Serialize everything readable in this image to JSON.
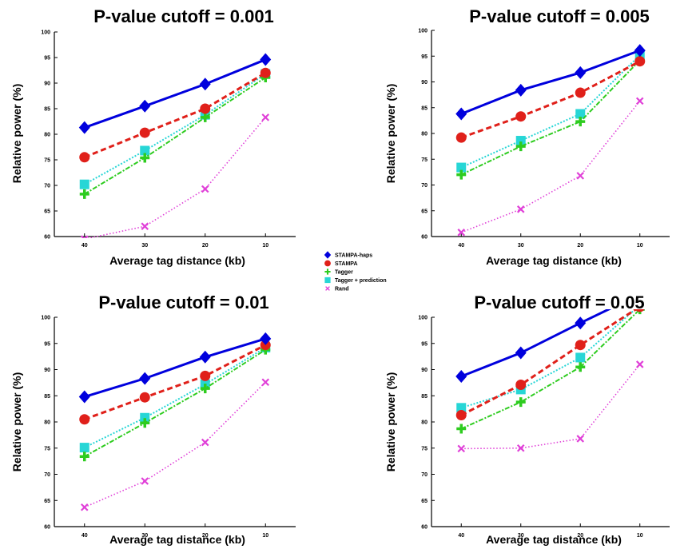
{
  "chart_data": [
    {
      "type": "line",
      "title": "P-value cutoff = 0.001",
      "xlabel": "Average tag distance (kb)",
      "ylabel": "Relative power (%)",
      "x_categories": [
        "40",
        "30",
        "20",
        "10"
      ],
      "ylim": [
        60,
        100
      ],
      "yticks": [
        60,
        65,
        70,
        75,
        80,
        85,
        90,
        95,
        100
      ],
      "series": [
        {
          "name": "STAMPA-haps",
          "values": [
            81.3,
            85.5,
            89.8,
            94.6
          ]
        },
        {
          "name": "STAMPA",
          "values": [
            75.5,
            80.3,
            85.0,
            92.0
          ]
        },
        {
          "name": "Tagger",
          "values": [
            68.3,
            75.4,
            83.3,
            91.1
          ]
        },
        {
          "name": "Tagger + prediction",
          "values": [
            70.2,
            76.8,
            83.8,
            91.8
          ]
        },
        {
          "name": "Rand",
          "values": [
            59.5,
            62.0,
            69.3,
            83.3
          ]
        }
      ]
    },
    {
      "type": "line",
      "title": "P-value cutoff = 0.005",
      "xlabel": "Average tag distance (kb)",
      "ylabel": "Relative power (%)",
      "x_categories": [
        "40",
        "30",
        "20",
        "10"
      ],
      "ylim": [
        60,
        100
      ],
      "yticks": [
        60,
        65,
        70,
        75,
        80,
        85,
        90,
        95,
        100
      ],
      "series": [
        {
          "name": "STAMPA-haps",
          "values": [
            83.8,
            88.4,
            91.8,
            96.1
          ]
        },
        {
          "name": "STAMPA",
          "values": [
            79.2,
            83.3,
            87.9,
            94.0
          ]
        },
        {
          "name": "Tagger",
          "values": [
            72.0,
            77.5,
            82.3,
            94.2
          ]
        },
        {
          "name": "Tagger + prediction",
          "values": [
            73.4,
            78.6,
            83.8,
            95.2
          ]
        },
        {
          "name": "Rand",
          "values": [
            60.8,
            65.3,
            71.8,
            86.3
          ]
        }
      ]
    },
    {
      "type": "line",
      "title": "P-value cutoff = 0.01",
      "xlabel": "Average tag distance (kb)",
      "ylabel": "Relative power (%)",
      "x_categories": [
        "40",
        "30",
        "20",
        "10"
      ],
      "ylim": [
        60,
        100
      ],
      "yticks": [
        60,
        65,
        70,
        75,
        80,
        85,
        90,
        95,
        100
      ],
      "series": [
        {
          "name": "STAMPA-haps",
          "values": [
            84.8,
            88.3,
            92.4,
            95.9
          ]
        },
        {
          "name": "STAMPA",
          "values": [
            80.5,
            84.7,
            88.8,
            94.7
          ]
        },
        {
          "name": "Tagger",
          "values": [
            73.4,
            79.8,
            86.4,
            93.8
          ]
        },
        {
          "name": "Tagger + prediction",
          "values": [
            75.1,
            80.8,
            87.2,
            94.2
          ]
        },
        {
          "name": "Rand",
          "values": [
            63.7,
            68.7,
            76.1,
            87.6
          ]
        }
      ]
    },
    {
      "type": "line",
      "title": "P-value cutoff = 0.05",
      "xlabel": "Average tag distance (kb)",
      "ylabel": "Relative power (%)",
      "x_categories": [
        "40",
        "30",
        "20",
        "10"
      ],
      "ylim": [
        60,
        100
      ],
      "yticks": [
        60,
        65,
        70,
        75,
        80,
        85,
        90,
        95,
        100
      ],
      "series": [
        {
          "name": "STAMPA-haps",
          "values": [
            88.7,
            93.2,
            98.9,
            104.4
          ]
        },
        {
          "name": "STAMPA",
          "values": [
            81.3,
            87.1,
            94.7,
            102.0
          ]
        },
        {
          "name": "Tagger",
          "values": [
            78.7,
            83.8,
            90.5,
            101.5
          ]
        },
        {
          "name": "Tagger + prediction",
          "values": [
            82.7,
            86.2,
            92.3,
            102.3
          ]
        },
        {
          "name": "Rand",
          "values": [
            74.9,
            75.0,
            76.8,
            91.0
          ]
        }
      ]
    }
  ],
  "legend": {
    "placement": "center",
    "items": [
      "STAMPA-haps",
      "STAMPA",
      "Tagger",
      "Tagger + prediction",
      "Rand"
    ]
  },
  "colors": {
    "STAMPA-haps": "#0000dd",
    "STAMPA": "#e0201a",
    "Tagger": "#2ecc1f",
    "Tagger + prediction": "#27d6d6",
    "Rand": "#e040d8",
    "axis": "#000000"
  }
}
